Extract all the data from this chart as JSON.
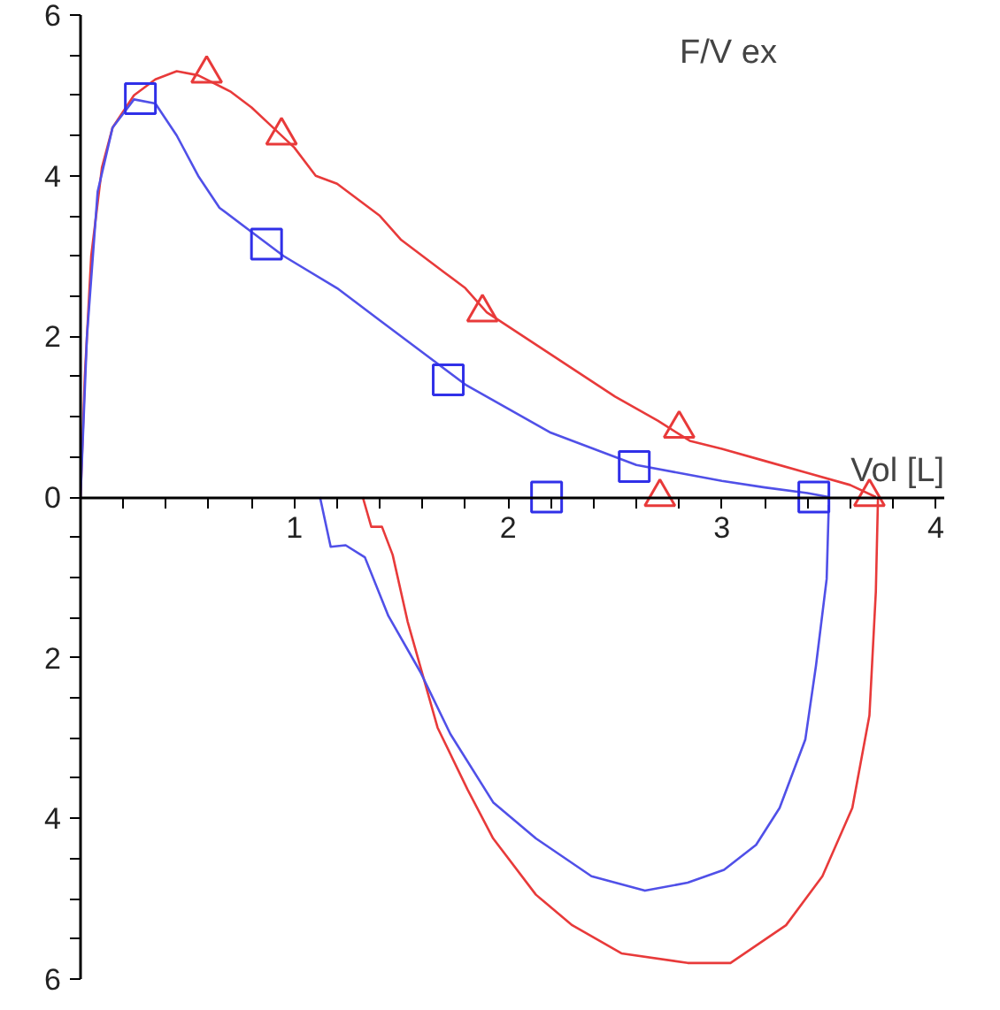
{
  "chart_data": {
    "type": "line",
    "title": "F/V ex",
    "xlabel": "Vol [L]",
    "xlim": [
      0,
      4.04
    ],
    "ylim": [
      -6,
      6
    ],
    "xticks": [
      {
        "value": 0.2,
        "label": null
      },
      {
        "value": 0.4,
        "label": null
      },
      {
        "value": 0.6,
        "label": null
      },
      {
        "value": 0.8,
        "label": null
      },
      1,
      {
        "value": 1.2,
        "label": null
      },
      {
        "value": 1.4,
        "label": null
      },
      {
        "value": 1.6,
        "label": null
      },
      {
        "value": 1.8,
        "label": null
      },
      2,
      {
        "value": 2.2,
        "label": null
      },
      {
        "value": 2.4,
        "label": null
      },
      {
        "value": 2.6,
        "label": null
      },
      {
        "value": 2.8,
        "label": null
      },
      3,
      {
        "value": 3.2,
        "label": null
      },
      {
        "value": 3.4,
        "label": null
      },
      {
        "value": 3.6,
        "label": null
      },
      {
        "value": 3.8,
        "label": null
      },
      4
    ],
    "yticks": [
      {
        "value": -6,
        "label": "6"
      },
      {
        "value": -5.5,
        "label": null
      },
      {
        "value": -5,
        "label": null
      },
      {
        "value": -4.5,
        "label": null
      },
      {
        "value": -4,
        "label": "4"
      },
      {
        "value": -3.5,
        "label": null
      },
      {
        "value": -3,
        "label": null
      },
      {
        "value": -2.5,
        "label": null
      },
      {
        "value": -2,
        "label": "2"
      },
      {
        "value": -1.5,
        "label": null
      },
      {
        "value": -1,
        "label": null
      },
      {
        "value": -0.5,
        "label": null
      },
      0,
      {
        "value": 0.5,
        "label": null
      },
      {
        "value": 1,
        "label": null
      },
      {
        "value": 1.5,
        "label": null
      },
      2,
      {
        "value": 2.5,
        "label": null
      },
      {
        "value": 3,
        "label": null
      },
      {
        "value": 3.5,
        "label": null
      },
      4,
      {
        "value": 4.5,
        "label": null
      },
      {
        "value": 5,
        "label": null
      },
      {
        "value": 5.5,
        "label": null
      },
      6
    ],
    "grid": false,
    "series": [
      {
        "color": "#e83a3a",
        "marker": "none",
        "x": [
          0,
          0.02,
          0.05,
          0.1,
          0.15,
          0.25,
          0.35,
          0.45,
          0.55,
          0.7,
          0.8,
          0.9,
          1.0,
          1.1,
          1.2,
          1.4,
          1.5,
          1.7,
          1.8,
          1.9,
          2.1,
          2.3,
          2.5,
          2.7,
          2.85,
          3.0,
          3.2,
          3.4,
          3.6,
          3.72,
          null,
          1.32,
          1.36,
          1.41,
          1.46,
          1.53,
          1.67,
          1.81,
          1.93,
          2.13,
          2.3,
          2.53,
          2.84,
          3.04,
          3.3,
          3.47,
          3.61,
          3.69,
          3.72,
          3.73
        ],
        "values": [
          0,
          1.5,
          3,
          4.1,
          4.6,
          5.0,
          5.2,
          5.3,
          5.25,
          5.05,
          4.85,
          4.6,
          4.35,
          4.0,
          3.9,
          3.5,
          3.2,
          2.8,
          2.6,
          2.3,
          1.95,
          1.6,
          1.25,
          0.95,
          0.7,
          0.6,
          0.45,
          0.3,
          0.15,
          0,
          null,
          0,
          -0.37,
          -0.37,
          -0.72,
          -1.55,
          -2.87,
          -3.64,
          -4.25,
          -4.95,
          -5.33,
          -5.68,
          -5.8,
          -5.8,
          -5.33,
          -4.72,
          -3.87,
          -2.72,
          -1.18,
          -0.02
        ]
      },
      {
        "color": "#5050e8",
        "marker": "none",
        "x": [
          0,
          0.03,
          0.08,
          0.15,
          0.25,
          0.35,
          0.45,
          0.55,
          0.65,
          0.8,
          0.95,
          1.2,
          1.4,
          1.6,
          1.8,
          2.0,
          2.2,
          2.4,
          2.6,
          2.8,
          3.0,
          3.2,
          3.4,
          3.5,
          null,
          1.12,
          1.17,
          1.24,
          1.33,
          1.44,
          1.59,
          1.73,
          1.93,
          2.13,
          2.39,
          2.64,
          2.84,
          3.01,
          3.16,
          3.27,
          3.39,
          3.44,
          3.49,
          3.5
        ],
        "values": [
          0,
          2,
          3.8,
          4.6,
          4.95,
          4.9,
          4.5,
          4.0,
          3.6,
          3.3,
          3.0,
          2.6,
          2.2,
          1.8,
          1.4,
          1.1,
          0.8,
          0.6,
          0.4,
          0.3,
          0.2,
          0.12,
          0.05,
          0,
          null,
          0,
          -0.62,
          -0.6,
          -0.75,
          -1.48,
          -2.18,
          -2.95,
          -3.8,
          -4.25,
          -4.72,
          -4.9,
          -4.8,
          -4.64,
          -4.33,
          -3.87,
          -3.02,
          -2.1,
          -1.02,
          -0.1
        ]
      },
      {
        "type": "scatter",
        "color": "#e83a3a",
        "marker": "triangle",
        "x": [
          0.59,
          0.94,
          1.88,
          2.8,
          3.69,
          2.71
        ],
        "values": [
          5.27,
          4.5,
          2.3,
          0.85,
          0,
          0
        ]
      },
      {
        "type": "scatter",
        "color": "#3030e8",
        "marker": "square",
        "x": [
          0.28,
          0.87,
          1.72,
          2.59,
          2.18,
          3.43
        ],
        "values": [
          4.96,
          3.15,
          1.46,
          0.38,
          0,
          0
        ]
      }
    ]
  }
}
